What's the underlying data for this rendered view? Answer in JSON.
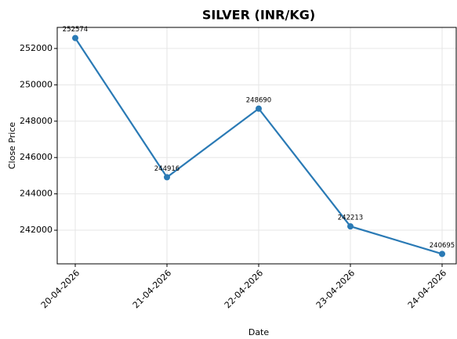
{
  "chart_data": {
    "type": "line",
    "title": "SILVER (INR/KG)",
    "x_label": "Date",
    "y_label": "Close Price",
    "categories": [
      "20-04-2026",
      "21-04-2026",
      "22-04-2026",
      "23-04-2026",
      "24-04-2026"
    ],
    "series": [
      {
        "name": "Close Price",
        "color": "#2a7ab5",
        "values": [
          252574,
          244916,
          248690,
          242213,
          240695
        ]
      }
    ],
    "ylim": [
      240150,
      253160
    ],
    "yticks": [
      242000,
      244000,
      246000,
      248000,
      250000,
      252000
    ],
    "grid": true
  }
}
